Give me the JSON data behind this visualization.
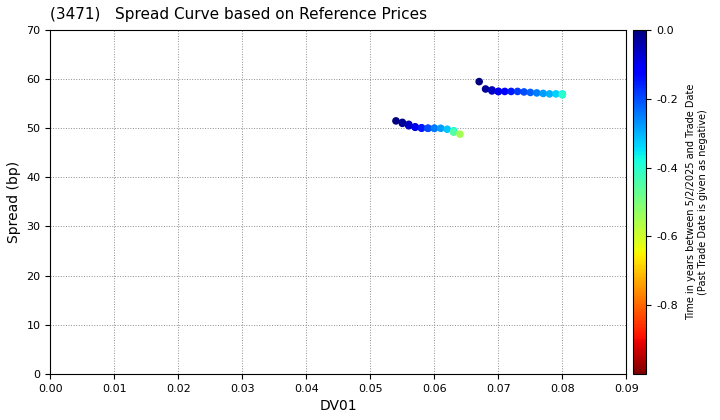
{
  "title": "(3471)   Spread Curve based on Reference Prices",
  "xlabel": "DV01",
  "ylabel": "Spread (bp)",
  "xlim": [
    0.0,
    0.09
  ],
  "ylim": [
    0,
    70
  ],
  "xticks": [
    0.0,
    0.01,
    0.02,
    0.03,
    0.04,
    0.05,
    0.06,
    0.07,
    0.08,
    0.09
  ],
  "yticks": [
    0,
    10,
    20,
    30,
    40,
    50,
    60,
    70
  ],
  "colorbar_label_line1": "Time in years between 5/2/2025 and Trade Date",
  "colorbar_label_line2": "(Past Trade Date is given as negative)",
  "cmap": "jet",
  "clim": [
    -1.0,
    0.0
  ],
  "colorbar_ticks": [
    0.0,
    -0.2,
    -0.4,
    -0.6,
    -0.8
  ],
  "cluster1": {
    "dv01": [
      0.054,
      0.055,
      0.055,
      0.056,
      0.056,
      0.057,
      0.057,
      0.058,
      0.058,
      0.059,
      0.059,
      0.06,
      0.06,
      0.061,
      0.062,
      0.063,
      0.063,
      0.064
    ],
    "spread": [
      51.5,
      51.2,
      51.0,
      50.8,
      50.5,
      50.3,
      50.2,
      50.1,
      50.0,
      50.0,
      50.0,
      50.0,
      50.0,
      50.0,
      49.8,
      49.5,
      49.2,
      48.8
    ],
    "time": [
      0.0,
      -0.01,
      -0.02,
      -0.04,
      -0.06,
      -0.08,
      -0.1,
      -0.12,
      -0.15,
      -0.18,
      -0.2,
      -0.22,
      -0.25,
      -0.28,
      -0.32,
      -0.38,
      -0.45,
      -0.55
    ]
  },
  "cluster2": {
    "dv01": [
      0.067,
      0.068,
      0.069,
      0.069,
      0.07,
      0.07,
      0.071,
      0.072,
      0.073,
      0.074,
      0.075,
      0.076,
      0.077,
      0.078,
      0.079,
      0.08,
      0.08
    ],
    "spread": [
      59.5,
      58.0,
      57.8,
      57.6,
      57.5,
      57.5,
      57.5,
      57.5,
      57.5,
      57.4,
      57.3,
      57.2,
      57.1,
      57.0,
      57.0,
      57.0,
      56.8
    ],
    "time": [
      0.0,
      -0.02,
      -0.04,
      -0.06,
      -0.08,
      -0.1,
      -0.12,
      -0.15,
      -0.18,
      -0.2,
      -0.22,
      -0.25,
      -0.28,
      -0.3,
      -0.33,
      -0.36,
      -0.4
    ]
  }
}
